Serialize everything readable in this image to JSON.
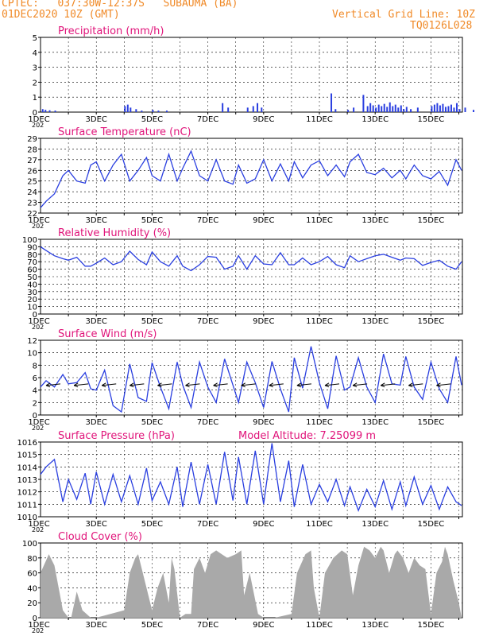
{
  "header": {
    "station": "CPTEC:   037:30W-12:37S   SUBAUMA (BA)",
    "init_time": "01DEC2020 10Z (GMT)",
    "grid_note": "Vertical Grid Line: 10Z",
    "model_code": "TQ0126L028",
    "altitude_note": "Model Altitude: 7.25099 m"
  },
  "colors": {
    "title": "#e0147a",
    "header": "#f08a28",
    "line": "#2a3fe0",
    "cloud": "#a9a9a9",
    "arrow": "#000000"
  },
  "x_tick_labels": [
    "1DEC",
    "3DEC",
    "5DEC",
    "7DEC",
    "9DEC",
    "11DEC",
    "13DEC",
    "15DEC"
  ],
  "year_stub": "202",
  "chart_data": [
    {
      "type": "bar",
      "title": "Precipitation (mm/h)",
      "ylim": [
        0,
        5
      ],
      "yticks": [
        "0",
        "1",
        "2",
        "3",
        "4",
        "5"
      ],
      "x_days": [
        0,
        15.1
      ],
      "values": [
        [
          0.05,
          0.2
        ],
        [
          0.15,
          0.15
        ],
        [
          0.3,
          0.12
        ],
        [
          0.5,
          0.1
        ],
        [
          3.0,
          0.4
        ],
        [
          3.1,
          0.5
        ],
        [
          3.2,
          0.3
        ],
        [
          3.4,
          0.2
        ],
        [
          3.6,
          0.1
        ],
        [
          4.0,
          0.15
        ],
        [
          4.2,
          0.1
        ],
        [
          4.5,
          0.1
        ],
        [
          6.5,
          0.6
        ],
        [
          6.7,
          0.3
        ],
        [
          7.4,
          0.3
        ],
        [
          7.6,
          0.4
        ],
        [
          7.75,
          0.6
        ],
        [
          7.9,
          0.3
        ],
        [
          10.4,
          1.25
        ],
        [
          10.55,
          0.2
        ],
        [
          11.0,
          0.15
        ],
        [
          11.2,
          0.3
        ],
        [
          11.55,
          1.15
        ],
        [
          11.7,
          0.4
        ],
        [
          11.8,
          0.6
        ],
        [
          11.9,
          0.45
        ],
        [
          12.0,
          0.3
        ],
        [
          12.1,
          0.5
        ],
        [
          12.2,
          0.4
        ],
        [
          12.3,
          0.55
        ],
        [
          12.4,
          0.35
        ],
        [
          12.5,
          0.65
        ],
        [
          12.6,
          0.4
        ],
        [
          12.7,
          0.5
        ],
        [
          12.8,
          0.3
        ],
        [
          12.9,
          0.45
        ],
        [
          13.0,
          0.2
        ],
        [
          13.1,
          0.35
        ],
        [
          13.25,
          0.2
        ],
        [
          13.5,
          0.3
        ],
        [
          14.0,
          0.4
        ],
        [
          14.1,
          0.5
        ],
        [
          14.2,
          0.6
        ],
        [
          14.3,
          0.45
        ],
        [
          14.4,
          0.55
        ],
        [
          14.5,
          0.35
        ],
        [
          14.6,
          0.4
        ],
        [
          14.7,
          0.5
        ],
        [
          14.8,
          0.3
        ],
        [
          14.9,
          0.6
        ],
        [
          15.0,
          0.2
        ],
        [
          15.2,
          0.3
        ],
        [
          15.5,
          0.15
        ]
      ]
    },
    {
      "type": "line",
      "title": "Surface Temperature (nC)",
      "ylim": [
        22,
        29
      ],
      "yticks": [
        "22",
        "23",
        "24",
        "25",
        "26",
        "27",
        "28",
        "29"
      ],
      "x": [
        0,
        0.2,
        0.5,
        0.8,
        1.0,
        1.3,
        1.6,
        1.8,
        2.0,
        2.3,
        2.6,
        2.9,
        3.2,
        3.5,
        3.8,
        4.0,
        4.3,
        4.6,
        4.9,
        5.1,
        5.4,
        5.7,
        6.0,
        6.3,
        6.6,
        6.9,
        7.1,
        7.4,
        7.7,
        8.0,
        8.3,
        8.6,
        8.9,
        9.1,
        9.4,
        9.7,
        10.0,
        10.3,
        10.6,
        10.9,
        11.1,
        11.4,
        11.7,
        12.0,
        12.3,
        12.6,
        12.9,
        13.1,
        13.4,
        13.7,
        14.0,
        14.3,
        14.6,
        14.9,
        15.1
      ],
      "values": [
        22.5,
        23.1,
        23.8,
        25.5,
        26.0,
        25.0,
        24.8,
        26.5,
        26.8,
        25.0,
        26.5,
        27.5,
        25.0,
        26.0,
        27.2,
        25.5,
        25.0,
        27.5,
        25.0,
        26.2,
        27.8,
        25.5,
        25.0,
        27.0,
        25.0,
        24.7,
        26.5,
        24.8,
        25.2,
        27.0,
        25.0,
        26.6,
        25.0,
        26.8,
        25.3,
        26.5,
        26.9,
        25.5,
        26.5,
        25.4,
        26.8,
        27.5,
        25.8,
        25.6,
        26.2,
        25.3,
        26.0,
        25.2,
        26.5,
        25.5,
        25.2,
        25.9,
        24.6,
        27.0,
        26.0
      ],
      "line_color": "#2a3fe0"
    },
    {
      "type": "line",
      "title": "Relative Humidity (%)",
      "ylim": [
        0,
        100
      ],
      "yticks": [
        "0",
        "10",
        "20",
        "30",
        "40",
        "50",
        "60",
        "70",
        "80",
        "90",
        "100"
      ],
      "x": [
        0,
        0.2,
        0.5,
        0.8,
        1.0,
        1.3,
        1.6,
        1.8,
        2.0,
        2.3,
        2.6,
        2.9,
        3.2,
        3.5,
        3.8,
        4.0,
        4.3,
        4.6,
        4.9,
        5.1,
        5.4,
        5.7,
        6.0,
        6.3,
        6.6,
        6.9,
        7.1,
        7.4,
        7.7,
        8.0,
        8.3,
        8.6,
        8.9,
        9.1,
        9.4,
        9.7,
        10.0,
        10.3,
        10.6,
        10.9,
        11.1,
        11.4,
        11.7,
        12.0,
        12.3,
        12.6,
        12.9,
        13.1,
        13.4,
        13.7,
        14.0,
        14.3,
        14.6,
        14.9,
        15.1
      ],
      "values": [
        90,
        85,
        78,
        74,
        72,
        76,
        64,
        64,
        68,
        75,
        66,
        70,
        84,
        73,
        66,
        83,
        70,
        64,
        78,
        64,
        58,
        66,
        77,
        76,
        60,
        64,
        78,
        60,
        78,
        67,
        66,
        82,
        66,
        66,
        75,
        66,
        70,
        77,
        66,
        62,
        78,
        70,
        74,
        78,
        80,
        76,
        72,
        75,
        74,
        65,
        69,
        72,
        64,
        60,
        70
      ],
      "line_color": "#2a3fe0"
    },
    {
      "type": "line",
      "title": "Surface Wind (m/s)",
      "ylim": [
        0,
        12
      ],
      "yticks": [
        "0",
        "2",
        "4",
        "6",
        "8",
        "10",
        "12"
      ],
      "x": [
        0,
        0.2,
        0.5,
        0.8,
        1.0,
        1.3,
        1.6,
        1.8,
        2.0,
        2.3,
        2.6,
        2.9,
        3.2,
        3.5,
        3.8,
        4.0,
        4.3,
        4.6,
        4.9,
        5.1,
        5.4,
        5.7,
        6.0,
        6.3,
        6.6,
        6.9,
        7.1,
        7.4,
        7.7,
        8.0,
        8.3,
        8.6,
        8.9,
        9.1,
        9.4,
        9.7,
        10.0,
        10.3,
        10.6,
        10.9,
        11.1,
        11.4,
        11.7,
        12.0,
        12.3,
        12.6,
        12.9,
        13.1,
        13.4,
        13.7,
        14.0,
        14.3,
        14.6,
        14.9,
        15.1
      ],
      "values": [
        4.5,
        5.5,
        4.5,
        6.5,
        5.0,
        5.2,
        6.8,
        4.2,
        4.0,
        7.2,
        1.5,
        0.5,
        8.2,
        2.8,
        2.2,
        8.4,
        4.5,
        1.0,
        8.5,
        4.8,
        1.2,
        8.5,
        4.5,
        2.0,
        9.0,
        4.8,
        2.0,
        8.5,
        5.2,
        1.2,
        8.6,
        4.2,
        0.5,
        9.2,
        4.3,
        11.0,
        5.2,
        1.0,
        9.5,
        4.0,
        4.5,
        9.2,
        4.5,
        2.0,
        9.8,
        5.0,
        4.8,
        9.4,
        4.5,
        2.5,
        8.5,
        4.2,
        2.0,
        9.4,
        4.8
      ],
      "line_color": "#2a3fe0"
    },
    {
      "type": "line",
      "title": "Surface Pressure (hPa)",
      "ylim": [
        1010,
        1016
      ],
      "yticks": [
        "1010",
        "1011",
        "1012",
        "1013",
        "1014",
        "1015",
        "1016"
      ],
      "x": [
        0,
        0.2,
        0.5,
        0.8,
        1.0,
        1.3,
        1.6,
        1.8,
        2.0,
        2.3,
        2.6,
        2.9,
        3.2,
        3.5,
        3.8,
        4.0,
        4.3,
        4.6,
        4.9,
        5.1,
        5.4,
        5.7,
        6.0,
        6.3,
        6.6,
        6.9,
        7.1,
        7.4,
        7.7,
        8.0,
        8.3,
        8.6,
        8.9,
        9.1,
        9.4,
        9.7,
        10.0,
        10.3,
        10.6,
        10.9,
        11.1,
        11.4,
        11.7,
        12.0,
        12.3,
        12.6,
        12.9,
        13.1,
        13.4,
        13.7,
        14.0,
        14.3,
        14.6,
        14.9,
        15.1
      ],
      "values": [
        1013.4,
        1014.0,
        1014.6,
        1011.2,
        1013.0,
        1011.4,
        1013.5,
        1011.0,
        1013.6,
        1011.0,
        1013.4,
        1011.2,
        1013.3,
        1011.0,
        1013.9,
        1011.3,
        1012.8,
        1011.0,
        1014.0,
        1010.8,
        1014.4,
        1011.0,
        1014.2,
        1011.0,
        1015.2,
        1011.3,
        1014.8,
        1011.0,
        1015.3,
        1011.0,
        1015.9,
        1011.2,
        1014.5,
        1010.8,
        1014.2,
        1011.0,
        1012.6,
        1011.2,
        1013.0,
        1010.9,
        1012.4,
        1010.5,
        1012.2,
        1010.8,
        1012.9,
        1010.6,
        1012.8,
        1010.9,
        1013.2,
        1011.0,
        1012.5,
        1010.6,
        1012.4,
        1011.2,
        1010.9
      ],
      "line_color": "#2a3fe0"
    },
    {
      "type": "area",
      "title": "Cloud Cover (%)",
      "ylim": [
        0,
        100
      ],
      "yticks": [
        "0",
        "20",
        "40",
        "60",
        "80",
        "100"
      ],
      "x": [
        0,
        0.3,
        0.5,
        0.7,
        0.8,
        1.0,
        1.1,
        1.3,
        1.5,
        1.8,
        2.0,
        2.2,
        3.0,
        3.2,
        3.4,
        3.5,
        3.6,
        4.0,
        4.2,
        4.4,
        4.6,
        4.7,
        4.8,
        5.0,
        5.2,
        5.4,
        5.5,
        5.7,
        5.9,
        6.1,
        6.3,
        6.5,
        6.7,
        7.0,
        7.2,
        7.3,
        7.5,
        7.8,
        8.0,
        8.2,
        8.4,
        9.0,
        9.2,
        9.5,
        9.7,
        9.8,
        10.0,
        10.2,
        10.5,
        10.8,
        11.0,
        11.2,
        11.4,
        11.6,
        11.8,
        12.0,
        12.2,
        12.3,
        12.5,
        12.7,
        12.8,
        13.0,
        13.2,
        13.4,
        13.6,
        13.8,
        14.0,
        14.2,
        14.4,
        14.5,
        14.6,
        14.8,
        15.0,
        15.1
      ],
      "values": [
        60,
        85,
        70,
        30,
        10,
        0,
        0,
        35,
        10,
        0,
        0,
        2,
        10,
        60,
        80,
        85,
        70,
        10,
        40,
        60,
        20,
        80,
        65,
        0,
        5,
        5,
        65,
        80,
        60,
        85,
        90,
        85,
        80,
        85,
        90,
        30,
        60,
        5,
        0,
        0,
        0,
        5,
        60,
        85,
        90,
        40,
        0,
        60,
        80,
        90,
        85,
        30,
        70,
        95,
        90,
        80,
        95,
        90,
        60,
        85,
        90,
        80,
        60,
        80,
        70,
        65,
        5,
        60,
        75,
        95,
        85,
        50,
        20,
        0
      ]
    }
  ]
}
